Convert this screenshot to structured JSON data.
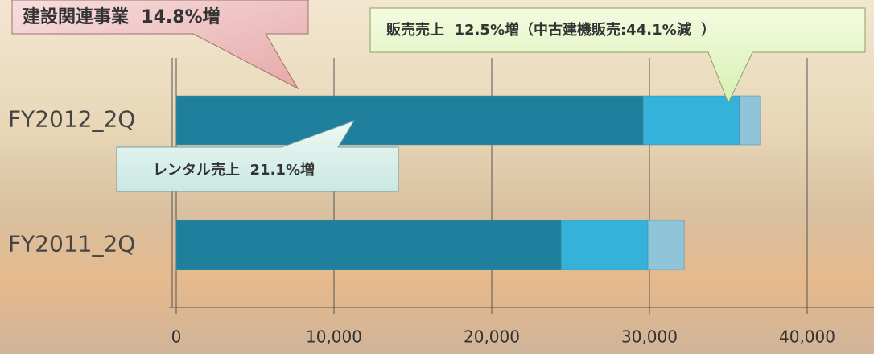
{
  "chart_data": {
    "type": "stacked_barh",
    "categories": [
      "FY2012_2Q",
      "FY2011_2Q"
    ],
    "series": [
      {
        "color": "#1f7f9c",
        "values": [
          29600,
          24400
        ]
      },
      {
        "color": "#35b2d9",
        "values": [
          6100,
          5500
        ]
      },
      {
        "color": "#8fc4d9",
        "values": [
          1300,
          2300
        ]
      }
    ],
    "xlim": [
      0,
      40000
    ],
    "xticks": [
      {
        "value": 0,
        "label": "0"
      },
      {
        "value": 10000,
        "label": "10,000"
      },
      {
        "value": 20000,
        "label": "20,000"
      },
      {
        "value": 30000,
        "label": "30,000"
      },
      {
        "value": 40000,
        "label": "40,000"
      }
    ],
    "grid": true,
    "annotations": [
      {
        "text": "建設関連事業  14.8%増"
      },
      {
        "text": "販売売上  12.5%増（中古建機販売:44.1%減  ）"
      },
      {
        "text": "レンタル売上  21.1%増"
      }
    ]
  }
}
